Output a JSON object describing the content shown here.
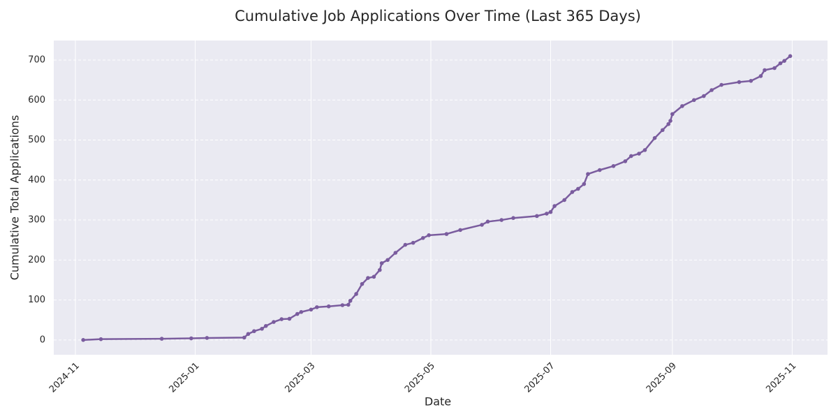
{
  "chart_data": {
    "type": "line",
    "title": "Cumulative Job Applications Over Time (Last 365 Days)",
    "x_label": "Date",
    "y_label": "Cumulative Total Applications",
    "x": [
      4,
      13,
      44,
      59,
      67,
      86,
      88,
      91,
      95,
      97,
      101,
      105,
      109,
      113,
      115,
      120,
      123,
      129,
      136,
      139,
      140,
      143,
      146,
      149,
      152,
      155,
      156,
      159,
      163,
      168,
      172,
      177,
      180,
      189,
      196,
      207,
      210,
      217,
      223,
      235,
      240,
      242,
      244,
      249,
      253,
      256,
      259,
      261,
      267,
      274,
      280,
      283,
      287,
      290,
      295,
      299,
      302,
      303,
      304,
      309,
      315,
      320,
      324,
      329,
      338,
      344,
      349,
      351,
      356,
      359,
      361,
      364
    ],
    "series": [
      {
        "name": "Cumulative Total Applications",
        "color": "#7a5c9e",
        "values": [
          0,
          2,
          3,
          4,
          5,
          6,
          15,
          22,
          28,
          35,
          45,
          52,
          53,
          65,
          70,
          76,
          82,
          84,
          87,
          88,
          98,
          115,
          140,
          155,
          158,
          175,
          192,
          200,
          218,
          238,
          243,
          255,
          262,
          265,
          275,
          288,
          296,
          300,
          305,
          310,
          316,
          320,
          335,
          350,
          370,
          378,
          390,
          415,
          425,
          435,
          447,
          460,
          466,
          475,
          505,
          525,
          540,
          548,
          565,
          585,
          600,
          610,
          625,
          638,
          645,
          648,
          660,
          675,
          680,
          692,
          698,
          710
        ]
      }
    ],
    "xlim": [
      -11,
      383
    ],
    "xticks": [
      {
        "value": 0,
        "label": "2024-11"
      },
      {
        "value": 61,
        "label": "2025-01"
      },
      {
        "value": 120,
        "label": "2025-03"
      },
      {
        "value": 181,
        "label": "2025-05"
      },
      {
        "value": 242,
        "label": "2025-07"
      },
      {
        "value": 304,
        "label": "2025-09"
      },
      {
        "value": 365,
        "label": "2025-11"
      }
    ],
    "ylim": [
      -37,
      749
    ],
    "yticks": [
      0,
      100,
      200,
      300,
      400,
      500,
      600,
      700
    ],
    "grid": true
  }
}
